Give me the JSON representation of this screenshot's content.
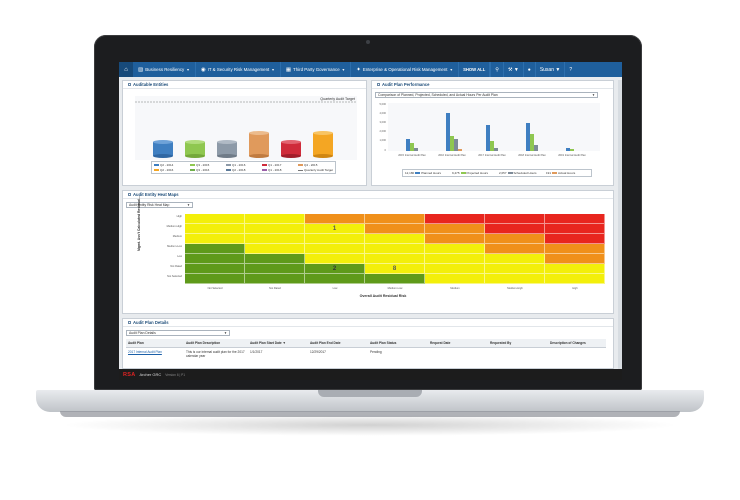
{
  "nav": {
    "items": [
      {
        "label": "Business Resiliency",
        "icon": "building-icon"
      },
      {
        "label": "IT & Security Risk Management",
        "icon": "lock-icon"
      },
      {
        "label": "Third Party Governance",
        "icon": "truck-icon"
      },
      {
        "label": "Enterprise & Operational Risk Management",
        "icon": "globe-icon"
      }
    ],
    "show_all": "SHOW ALL",
    "user": "Susan"
  },
  "auditable_entities": {
    "title": "Auditable Entities",
    "target_label": "Quarterly Audit Target",
    "legend": [
      "Q2 - 2014",
      "Q3 - 2015",
      "Q1 - 2016",
      "Q2 - 2016",
      "Q4 - 2015",
      "Q1 - 2017",
      "Q3 - 2016",
      "Q2 - 2018",
      "Q1 - 2018",
      "Quarterly Audit Target"
    ],
    "colors": [
      "#3f7fc1",
      "#8fc750",
      "#8d9aa8",
      "#e09a5c",
      "#cf2b3a",
      "#f4a623"
    ]
  },
  "audit_plan_performance": {
    "title": "Audit Plan Performance",
    "select": "Comparison of Planned, Projected, Scheduled, and Actual Hours Per Audit Plan",
    "legend": [
      {
        "label": "Planned Hours",
        "value": "12,180",
        "color": "#3f7fc1"
      },
      {
        "label": "Projected Hours",
        "value": "9,475",
        "color": "#8fc750"
      },
      {
        "label": "Scheduled Hours",
        "value": "2,057",
        "color": "#7d8a98"
      },
      {
        "label": "Actual Hours",
        "value": "191",
        "color": "#e09a5c"
      }
    ],
    "categories": [
      "2015 Internal Audit Plan",
      "2016 Internal Audit Plan",
      "2017 Internal Audit Plan",
      "2018 Internal Audit Plan",
      "2019 Internal Audit Plan"
    ]
  },
  "heat_map": {
    "title": "Audit Entity Heat Maps",
    "select": "Audit Entity Risk Heat Map",
    "y_title": "Mgmt. Ass't Calculated Residual...",
    "x_title": "Overall Audit Residual Risk",
    "y_labels": [
      "High",
      "Medium-High",
      "Medium",
      "Medium-Low",
      "Low",
      "Not Rated",
      "Not Selected"
    ],
    "x_labels": [
      "Not Selected",
      "Not Rated",
      "Low",
      "Medium-Low",
      "Medium",
      "Medium-High",
      "High"
    ],
    "values": {
      "r1c2": "1",
      "r5c2": "2",
      "r5c3": "8"
    }
  },
  "audit_plan_details": {
    "title": "Audit Plan Details",
    "select": "Audit Plan Details",
    "columns": [
      "Audit Plan",
      "Audit Plan Description",
      "Audit Plan Start Date",
      "Audit Plan End Date",
      "Audit Plan Status",
      "Request Date",
      "Requested By",
      "Description of Changes"
    ],
    "row": [
      "2017 Internal Audit Plan",
      "This is our internal audit plan for the 2017 calendar year",
      "1/1/2017",
      "12/29/2017",
      "Pending",
      "",
      "",
      ""
    ]
  },
  "footer": {
    "brand": "RSA",
    "product": "Archer GRC",
    "version": "Version 6 | P1"
  }
}
